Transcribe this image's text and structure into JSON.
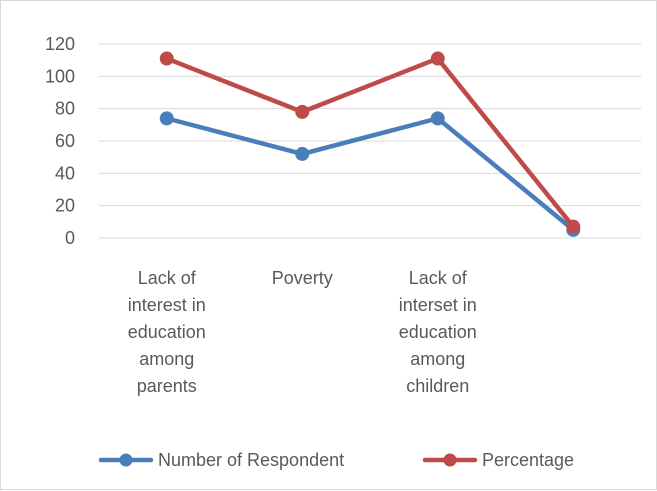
{
  "chart_data": {
    "type": "line",
    "categories": [
      [
        "Lack of",
        "interest in",
        "education",
        "among",
        "parents"
      ],
      [
        "Poverty"
      ],
      [
        "Lack of",
        "interset in",
        "education",
        "among",
        "children"
      ],
      [
        ""
      ]
    ],
    "series": [
      {
        "name": "Number of Respondent",
        "values": [
          74,
          52,
          74,
          5
        ],
        "color": "#4a7ebb"
      },
      {
        "name": "Percentage",
        "values": [
          111,
          78,
          111,
          7
        ],
        "color": "#be4b48"
      }
    ],
    "ylim": [
      0,
      120
    ],
    "yticks": [
      0,
      20,
      40,
      60,
      80,
      100,
      120
    ],
    "grid": true,
    "legend": "bottom",
    "title": "",
    "xlabel": "",
    "ylabel": ""
  }
}
